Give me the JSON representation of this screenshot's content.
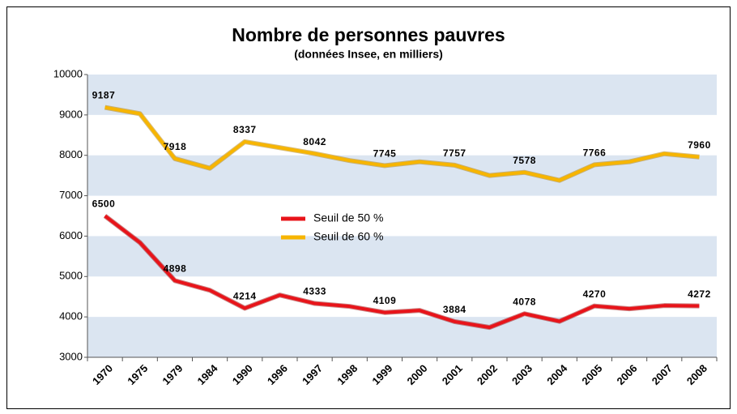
{
  "chart_data": {
    "type": "line",
    "title": "Nombre de personnes pauvres",
    "subtitle": "(données Insee, en milliers)",
    "categories": [
      "1970",
      "1975",
      "1979",
      "1984",
      "1990",
      "1996",
      "1997",
      "1998",
      "1999",
      "2000",
      "2001",
      "2002",
      "2003",
      "2004",
      "2005",
      "2006",
      "2007",
      "2008"
    ],
    "series": [
      {
        "name": "Seuil de 50 %",
        "color": "#e8141a",
        "values": [
          6500,
          5840,
          4898,
          4660,
          4214,
          4540,
          4333,
          4260,
          4109,
          4160,
          3884,
          3740,
          4078,
          3890,
          4270,
          4200,
          4280,
          4272
        ],
        "value_labels": [
          "6500",
          null,
          "4898",
          null,
          "4214",
          null,
          "4333",
          null,
          "4109",
          null,
          "3884",
          null,
          "4078",
          null,
          "4270",
          null,
          null,
          "4272"
        ]
      },
      {
        "name": "Seuil de 60 %",
        "color": "#f7b500",
        "values": [
          9187,
          9030,
          7918,
          7680,
          8337,
          8190,
          8042,
          7870,
          7745,
          7840,
          7757,
          7500,
          7578,
          7380,
          7766,
          7840,
          8040,
          7960
        ],
        "value_labels": [
          "9187",
          null,
          "7918",
          null,
          "8337",
          null,
          "8042",
          null,
          "7745",
          null,
          "7757",
          null,
          "7578",
          null,
          "7766",
          null,
          null,
          "7960"
        ]
      }
    ],
    "ylim": [
      3000,
      10000
    ],
    "yticks": [
      3000,
      4000,
      5000,
      6000,
      7000,
      8000,
      9000,
      10000
    ],
    "grid": true
  }
}
